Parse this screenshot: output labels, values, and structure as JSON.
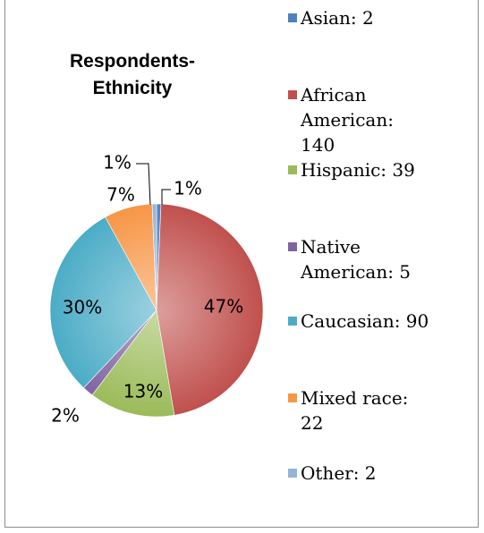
{
  "chart_data": {
    "type": "pie",
    "title": "Respondents- Ethnicity",
    "title_lines": [
      "Respondents-",
      "Ethnicity"
    ],
    "slices": [
      {
        "name": "Asian",
        "value": 2,
        "percent_label": "1%",
        "legend_label": "Asian: 2",
        "color": "#4f81bd"
      },
      {
        "name": "African American",
        "value": 140,
        "percent_label": "47%",
        "legend_label": "African American: 140",
        "color": "#c0504d"
      },
      {
        "name": "Hispanic",
        "value": 39,
        "percent_label": "13%",
        "legend_label": "Hispanic: 39",
        "color": "#9bbb59"
      },
      {
        "name": "Native American",
        "value": 5,
        "percent_label": "2%",
        "legend_label": "Native American: 5",
        "color": "#8064a2"
      },
      {
        "name": "Caucasian",
        "value": 90,
        "percent_label": "30%",
        "legend_label": "Caucasian: 90",
        "color": "#4bacc6"
      },
      {
        "name": "Mixed race",
        "value": 22,
        "percent_label": "7%",
        "legend_label": "Mixed race: 22",
        "color": "#f79646"
      },
      {
        "name": "Other",
        "value": 2,
        "percent_label": "1%",
        "legend_label": "Other: 2",
        "color": "#95b3d7"
      }
    ],
    "legend_position": "right"
  }
}
